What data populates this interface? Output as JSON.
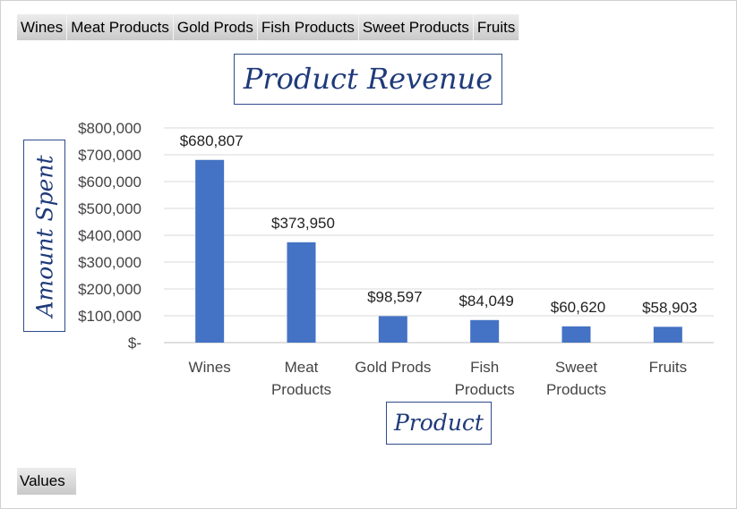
{
  "filters": [
    "Wines",
    "Meat Products",
    "Gold Prods",
    "Fish Products",
    "Sweet Products",
    "Fruits"
  ],
  "values_button": "Values",
  "chart_data": {
    "type": "bar",
    "title": "Product Revenue",
    "xlabel": "Product",
    "ylabel": "Amount Spent",
    "categories": [
      "Wines",
      "Meat Products",
      "Gold Prods",
      "Fish Products",
      "Sweet Products",
      "Fruits"
    ],
    "category_lines": [
      [
        "Wines"
      ],
      [
        "Meat",
        "Products"
      ],
      [
        "Gold Prods"
      ],
      [
        "Fish",
        "Products"
      ],
      [
        "Sweet",
        "Products"
      ],
      [
        "Fruits"
      ]
    ],
    "values": [
      680807,
      373950,
      98597,
      84049,
      60620,
      58903
    ],
    "data_labels": [
      "$680,807",
      "$373,950",
      "$98,597",
      "$84,049",
      "$60,620",
      "$58,903"
    ],
    "ylim": [
      0,
      800000
    ],
    "yticks": [
      0,
      100000,
      200000,
      300000,
      400000,
      500000,
      600000,
      700000,
      800000
    ],
    "ytick_labels": [
      "$-",
      "$100,000",
      "$200,000",
      "$300,000",
      "$400,000",
      "$500,000",
      "$600,000",
      "$700,000",
      "$800,000"
    ],
    "grid": true,
    "bar_color": "#4472C4"
  }
}
